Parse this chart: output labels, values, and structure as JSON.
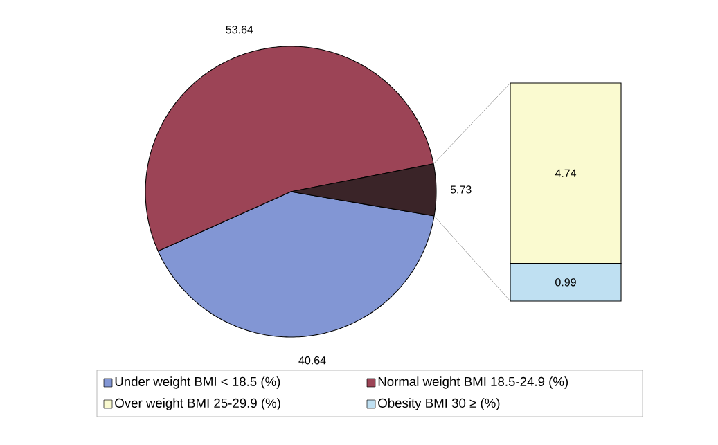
{
  "chart_data": [
    {
      "type": "pie",
      "categories": [
        "Under weight BMI < 18.5 (%)",
        "Normal weight BMI 18.5-24.9 (%)",
        null
      ],
      "values": [
        40.64,
        53.64,
        5.73
      ],
      "colors": [
        "#8296d4",
        "#9c4456",
        "#3a2428"
      ],
      "data_labels": true,
      "legend": "bottom"
    },
    {
      "type": "bar",
      "stacked": true,
      "categories": [
        null
      ],
      "series": [
        {
          "name": "Obesity BMI 30 ≥ (%)",
          "color": "#bfe0f2",
          "values": [
            0.99
          ]
        },
        {
          "name": "Over weight BMI 25-29.9 (%)",
          "color": "#fafad0",
          "values": [
            4.74
          ]
        }
      ],
      "data_labels": true,
      "legend": "bottom"
    }
  ]
}
